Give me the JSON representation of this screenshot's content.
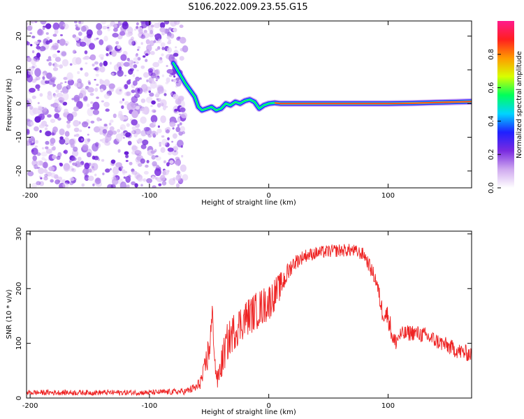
{
  "figure": {
    "title": "S106.2022.009.23.55.G15"
  },
  "chart_data": [
    {
      "type": "heatmap",
      "xlabel": "Height of straight line (km)",
      "ylabel": "Frequency (Hz)",
      "xlim": [
        -203,
        170
      ],
      "ylim": [
        -25,
        24.5
      ],
      "x_ticks": [
        -200,
        -100,
        0,
        100
      ],
      "y_ticks": [
        -20,
        -10,
        0,
        10,
        20
      ],
      "grid": false,
      "noise_region": {
        "x_range": [
          -203,
          -70
        ],
        "y_range": [
          -25,
          24.5
        ]
      },
      "signal_trace": {
        "x": [
          -80,
          -75,
          -70,
          -66,
          -62,
          -59,
          -56,
          -52,
          -48,
          -44,
          -40,
          -36,
          -32,
          -28,
          -24,
          -20,
          -16,
          -12,
          -8,
          -4,
          0,
          5,
          10,
          20,
          40,
          60,
          80,
          100,
          120,
          140,
          160,
          170
        ],
        "frequency": [
          12,
          9,
          6,
          4,
          2,
          -1,
          -2,
          -1.5,
          -1,
          -2,
          -1.5,
          0,
          -0.5,
          0.5,
          0,
          0.8,
          1.2,
          0.5,
          -1.5,
          -0.5,
          0,
          0.2,
          0,
          0,
          0,
          0,
          0,
          0,
          0.1,
          0.3,
          0.5,
          0.6
        ]
      },
      "colorbar": {
        "label": "Normalized spectral amplitude",
        "range": [
          0,
          1
        ],
        "ticks": [
          "0.0",
          "0.2",
          "0.4",
          "0.6",
          "0.8"
        ],
        "colors": [
          "#ffffff",
          "#cfa9ef",
          "#7a2be0",
          "#1f20ff",
          "#00d4ff",
          "#00ff5a",
          "#d8ff00",
          "#ff9a00",
          "#ff1f1f",
          "#ff1a8c"
        ]
      }
    },
    {
      "type": "line",
      "xlabel": "Height of straight line (km)",
      "ylabel": "SNR (10 * v/v)",
      "xlim": [
        -203,
        170
      ],
      "ylim": [
        0,
        305
      ],
      "x_ticks": [
        -200,
        -100,
        0,
        100
      ],
      "y_ticks": [
        0,
        100,
        200,
        300
      ],
      "grid": false,
      "series_color": "#ee2222",
      "envelope": {
        "x": [
          -203,
          -150,
          -100,
          -70,
          -60,
          -55,
          -50,
          -47,
          -45,
          -43,
          -40,
          -35,
          -30,
          -20,
          -10,
          0,
          10,
          20,
          30,
          40,
          50,
          60,
          70,
          80,
          90,
          95,
          100,
          105,
          110,
          120,
          130,
          140,
          150,
          160,
          170
        ],
        "mid": [
          10,
          10,
          10,
          12,
          20,
          40,
          90,
          150,
          60,
          30,
          60,
          100,
          120,
          145,
          160,
          175,
          205,
          245,
          260,
          265,
          268,
          270,
          270,
          262,
          215,
          160,
          150,
          100,
          115,
          120,
          115,
          105,
          95,
          85,
          80
        ],
        "amp": [
          5,
          5,
          5,
          6,
          10,
          18,
          35,
          30,
          20,
          15,
          30,
          35,
          35,
          35,
          35,
          35,
          25,
          15,
          12,
          12,
          12,
          12,
          12,
          12,
          15,
          20,
          20,
          20,
          15,
          15,
          15,
          15,
          15,
          15,
          15
        ]
      }
    }
  ]
}
